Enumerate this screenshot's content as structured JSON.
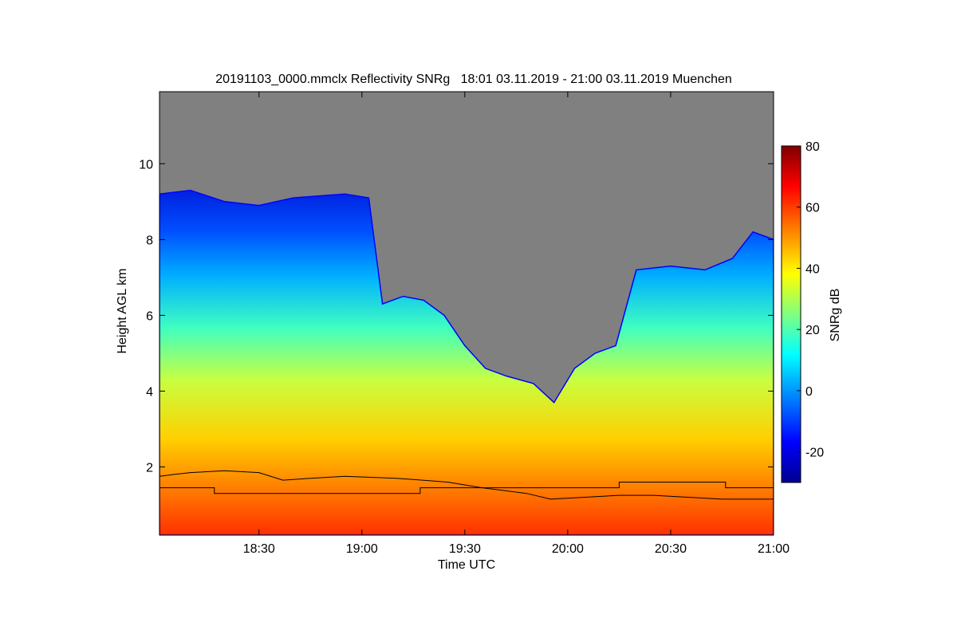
{
  "chart_data": {
    "type": "heatmap",
    "title": "20191103_0000.mmclx Reflectivity SNRg   18:01 03.11.2019 - 21:00 03.11.2019 Muenchen",
    "xlabel": "Time UTC",
    "ylabel": "Height AGL km",
    "x_ticks": [
      "18:30",
      "19:00",
      "19:30",
      "20:00",
      "20:30",
      "21:00"
    ],
    "x_tick_minutes": [
      30,
      60,
      90,
      120,
      150,
      180
    ],
    "xlim_minutes": [
      1,
      180
    ],
    "y_ticks": [
      2,
      4,
      6,
      8,
      10
    ],
    "ylim_km": [
      0.2,
      11.9
    ],
    "background_color": "#808080",
    "colorbar": {
      "label": "SNRg dB",
      "ticks": [
        -20,
        0,
        20,
        40,
        60,
        80
      ],
      "range": [
        -30,
        80
      ],
      "colormap": [
        "#00008f",
        "#0000ff",
        "#0080ff",
        "#00ffff",
        "#80ff80",
        "#ffff00",
        "#ff8000",
        "#ff0000",
        "#800000"
      ]
    },
    "cloud_top_km": [
      [
        1,
        9.2
      ],
      [
        10,
        9.3
      ],
      [
        20,
        9.0
      ],
      [
        30,
        8.9
      ],
      [
        40,
        9.1
      ],
      [
        55,
        9.2
      ],
      [
        62,
        9.1
      ],
      [
        66,
        6.3
      ],
      [
        72,
        6.5
      ],
      [
        78,
        6.4
      ],
      [
        84,
        6.0
      ],
      [
        90,
        5.2
      ],
      [
        96,
        4.6
      ],
      [
        102,
        4.4
      ],
      [
        110,
        4.2
      ],
      [
        116,
        3.7
      ],
      [
        122,
        4.6
      ],
      [
        128,
        5.0
      ],
      [
        134,
        5.2
      ],
      [
        140,
        7.2
      ],
      [
        150,
        7.3
      ],
      [
        160,
        7.2
      ],
      [
        168,
        7.5
      ],
      [
        174,
        8.2
      ],
      [
        180,
        8.0
      ]
    ],
    "boundary_layer_km": [
      [
        1,
        1.75
      ],
      [
        5,
        1.8
      ],
      [
        10,
        1.85
      ],
      [
        20,
        1.9
      ],
      [
        30,
        1.85
      ],
      [
        37,
        1.65
      ],
      [
        45,
        1.7
      ],
      [
        55,
        1.75
      ],
      [
        70,
        1.7
      ],
      [
        85,
        1.6
      ],
      [
        95,
        1.45
      ],
      [
        108,
        1.3
      ],
      [
        115,
        1.15
      ],
      [
        125,
        1.2
      ],
      [
        135,
        1.25
      ],
      [
        145,
        1.25
      ],
      [
        155,
        1.2
      ],
      [
        165,
        1.15
      ],
      [
        175,
        1.15
      ],
      [
        180,
        1.15
      ]
    ],
    "step_line_km": [
      [
        1,
        1.45
      ],
      [
        17,
        1.45
      ],
      [
        17,
        1.3
      ],
      [
        77,
        1.3
      ],
      [
        77,
        1.45
      ],
      [
        135,
        1.45
      ],
      [
        135,
        1.6
      ],
      [
        166,
        1.6
      ],
      [
        166,
        1.45
      ],
      [
        180,
        1.45
      ]
    ]
  }
}
